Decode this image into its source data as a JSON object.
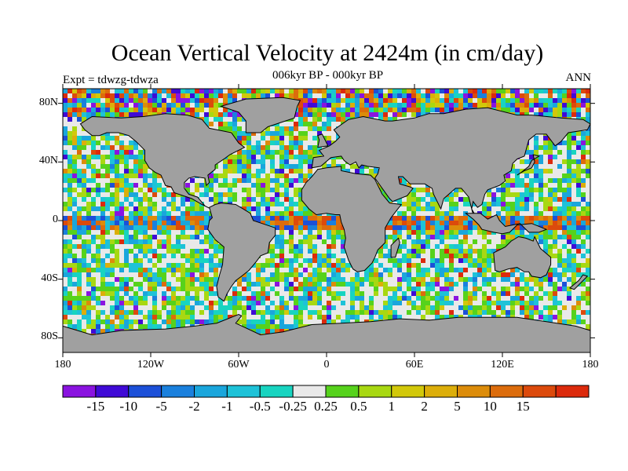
{
  "header": {
    "title": "Ocean Vertical Velocity at 2424m (in cm/day)",
    "expt": "Expt = tdwzg-tdwza",
    "subtitle": "006kyr BP - 000kyr BP",
    "season": "ANN"
  },
  "map": {
    "projection": "cylindrical-equidistant",
    "land_color": "#a0a0a0",
    "ocean_background_color": "#e6e6e6",
    "lat_labels": [
      "80N",
      "40N",
      "0",
      "40S",
      "80S"
    ],
    "lat_values": [
      80,
      40,
      0,
      -40,
      -80
    ],
    "lon_labels": [
      "180",
      "120W",
      "60W",
      "0",
      "60E",
      "120E",
      "180"
    ],
    "lon_values": [
      -180,
      -120,
      -60,
      0,
      60,
      120,
      180
    ],
    "lat_range": [
      -90,
      90
    ],
    "lon_range": [
      -180,
      180
    ]
  },
  "colorbar": {
    "colors": [
      "#8a13e0",
      "#3f0ad6",
      "#1c50d8",
      "#1a80dd",
      "#1aa6dc",
      "#1ec2d8",
      "#18d4c0",
      "#e9e9e9",
      "#56d21c",
      "#a8d812",
      "#d2c80a",
      "#dcae0a",
      "#dc8c0a",
      "#dc6c0c",
      "#dc4a0c",
      "#dc2a0c"
    ],
    "labels": [
      "-15",
      "-10",
      "-5",
      "-2",
      "-1",
      "-0.5",
      "-0.25",
      "0.25",
      "0.5",
      "1",
      "2",
      "5",
      "10",
      "15"
    ]
  }
}
